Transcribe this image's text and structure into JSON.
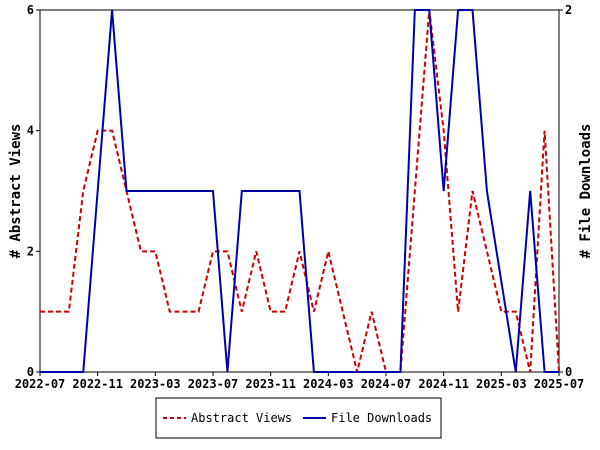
{
  "chart_data": {
    "type": "line",
    "x_tick_labels": [
      "2022-07",
      "2022-11",
      "2023-03",
      "2023-07",
      "2023-11",
      "2024-03",
      "2024-07",
      "2024-11",
      "2025-03",
      "2025-07"
    ],
    "x_tick_months": [
      0,
      4,
      8,
      12,
      16,
      20,
      24,
      28,
      32,
      36
    ],
    "xlim_months": [
      0,
      36
    ],
    "left_axis": {
      "label": "# Abstract Views",
      "ylim": [
        0,
        6
      ],
      "ticks": [
        0,
        2,
        4,
        6
      ]
    },
    "right_axis": {
      "label": "# File Downloads",
      "ylim": [
        0,
        2
      ],
      "ticks": [
        0,
        2
      ]
    },
    "grid": false,
    "legend_position": "bottom",
    "series": [
      {
        "name": "Abstract Views",
        "axis": "left",
        "color": "#cc0000",
        "style": "dashed",
        "x_months": [
          0,
          1,
          2,
          3,
          4,
          5,
          6,
          7,
          8,
          9,
          10,
          11,
          12,
          13,
          14,
          15,
          16,
          17,
          18,
          19,
          20,
          21,
          22,
          23,
          24,
          25,
          26,
          27,
          28,
          29,
          30,
          31,
          32,
          33,
          34,
          35,
          36
        ],
        "values": [
          1,
          1,
          1,
          3,
          4,
          4,
          3,
          2,
          2,
          1,
          1,
          1,
          2,
          2,
          1,
          2,
          1,
          1,
          2,
          1,
          2,
          1,
          0,
          1,
          0,
          0,
          3,
          6,
          4,
          1,
          3,
          2,
          1,
          1,
          0,
          4,
          0
        ]
      },
      {
        "name": "File Downloads",
        "axis": "right",
        "color": "#0000aa",
        "style": "solid",
        "x_months": [
          0,
          3,
          5,
          6,
          12,
          13,
          14,
          18,
          19,
          23,
          24,
          25,
          26,
          27,
          28,
          29,
          30,
          31,
          33,
          34,
          35,
          36
        ],
        "values": [
          0,
          0,
          2,
          1,
          1,
          0,
          1,
          1,
          0,
          0,
          0,
          0,
          2,
          2,
          1,
          2,
          2,
          1,
          0,
          1,
          0,
          0
        ]
      }
    ]
  }
}
